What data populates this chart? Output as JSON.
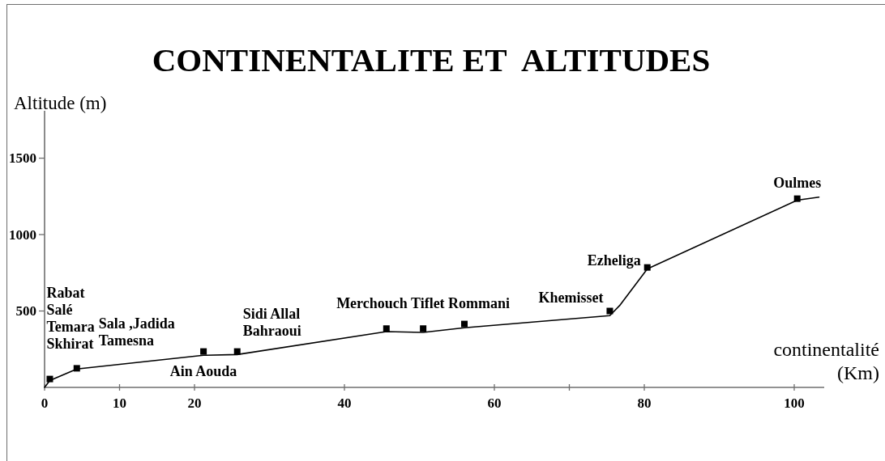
{
  "chart_data": {
    "type": "line",
    "title": "CONTINENTALITE ET  ALTITUDES",
    "xlabel": "continentalité (Km)",
    "ylabel": "Altitude (m)",
    "xlim": [
      0,
      104
    ],
    "xticks": [
      0,
      10,
      20,
      40,
      60,
      {
        "value": 70,
        "label": null
      },
      80,
      100
    ],
    "ylim": [
      0,
      1810
    ],
    "yticks": [
      500,
      1000,
      1500
    ],
    "line_style": "solid",
    "series": [
      {
        "color": "#000000",
        "x": [
          0,
          0.7,
          4.3,
          21.2,
          25.7,
          45.6,
          50.5,
          56,
          75.4,
          76.7,
          80.4,
          100.4,
          103.3
        ],
        "values": [
          0,
          45,
          120,
          210,
          215,
          365,
          360,
          390,
          470,
          535,
          775,
          1225,
          1245
        ]
      },
      {
        "type": "scatter",
        "marker": "square",
        "color": "#000000",
        "x": [
          0.7,
          4.3,
          21.2,
          25.7,
          45.6,
          50.5,
          56,
          75.4,
          80.4,
          100.4
        ],
        "values": [
          55,
          125,
          235,
          235,
          385,
          385,
          415,
          500,
          785,
          1235
        ]
      }
    ],
    "annotations": [
      {
        "text": "Rabat\nSalé\nTemara\nSkhirat",
        "x": 0.7,
        "y": 55
      },
      {
        "text": "Sala ,Jadida\nTamesna",
        "x": 4.3,
        "y": 125
      },
      {
        "text": "Ain Aouda",
        "x": 21.2,
        "y": 235
      },
      {
        "text": "Sidi Allal\nBahraoui",
        "x": 25.7,
        "y": 235
      },
      {
        "text": "Merchouch Tiflet Rommani",
        "x": 50.5,
        "y": 385
      },
      {
        "text": "Khemisset",
        "x": 75.4,
        "y": 500
      },
      {
        "text": "Ezheliga",
        "x": 80.4,
        "y": 785
      },
      {
        "text": "Oulmes",
        "x": 100.4,
        "y": 1235
      }
    ]
  }
}
